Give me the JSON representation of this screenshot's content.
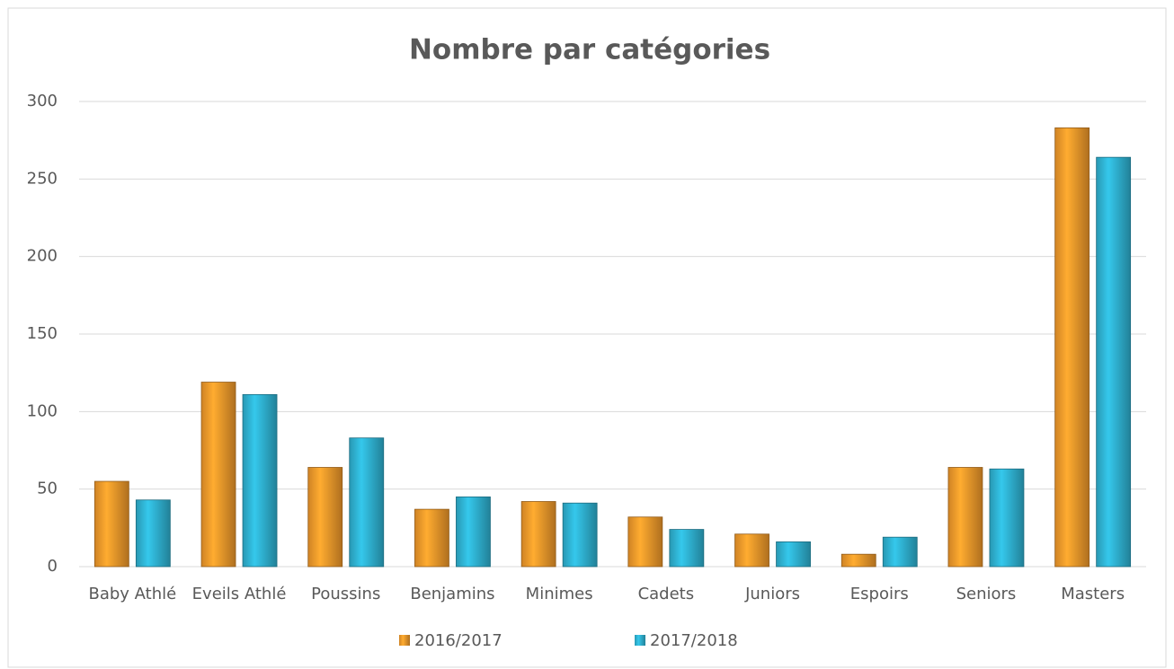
{
  "chart_data": {
    "type": "bar",
    "title": "Nombre par catégories",
    "categories": [
      "Baby Athlé",
      "Eveils Athlé",
      "Poussins",
      "Benjamins",
      "Minimes",
      "Cadets",
      "Juniors",
      "Espoirs",
      "Seniors",
      "Masters"
    ],
    "series": [
      {
        "name": "2016/2017",
        "color": "#f39a2b",
        "values": [
          55,
          119,
          64,
          37,
          42,
          32,
          21,
          8,
          64,
          283
        ]
      },
      {
        "name": "2017/2018",
        "color": "#2fb3d3",
        "values": [
          43,
          111,
          83,
          45,
          41,
          24,
          16,
          19,
          63,
          264
        ]
      }
    ],
    "ylim": [
      0,
      300
    ],
    "yticks": [
      0,
      50,
      100,
      150,
      200,
      250,
      300
    ],
    "grid": true,
    "legend": "bottom"
  }
}
